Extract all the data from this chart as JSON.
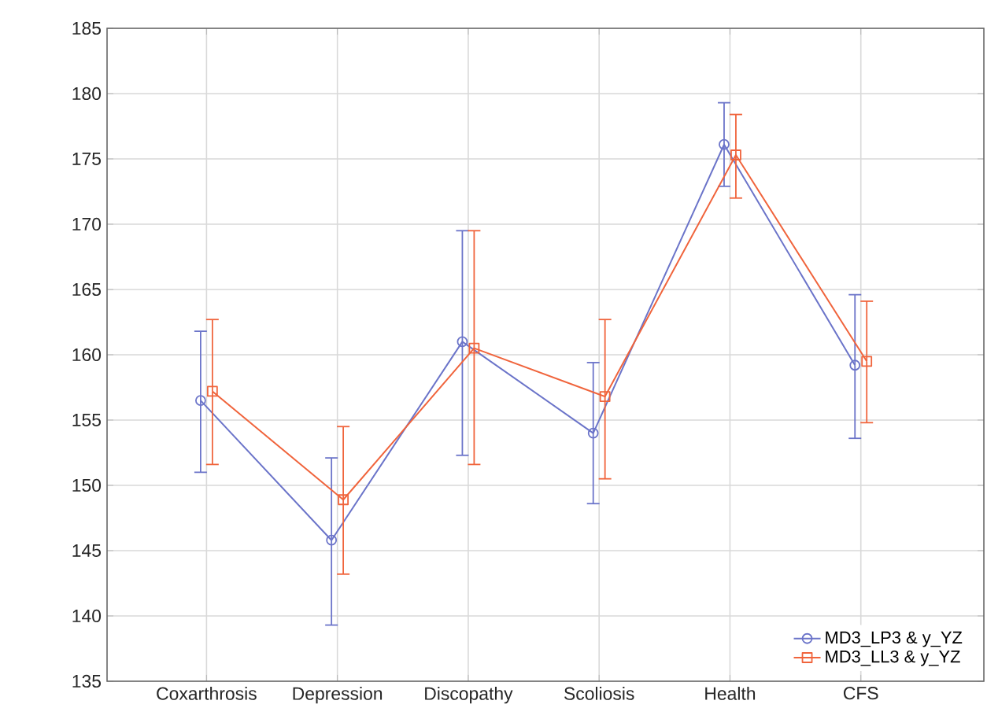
{
  "chart_data": {
    "type": "line",
    "categories": [
      "Coxarthrosis",
      "Depression",
      "Discopathy",
      "Scoliosis",
      "Health",
      "CFS"
    ],
    "series": [
      {
        "name": "MD3_LP3 & y_YZ",
        "color": "#6b74c9",
        "marker": "circle",
        "values": [
          156.5,
          145.8,
          161.0,
          154.0,
          176.1,
          159.2
        ],
        "errors": [
          [
            151.0,
            161.8
          ],
          [
            139.3,
            152.1
          ],
          [
            152.3,
            169.5
          ],
          [
            148.6,
            159.4
          ],
          [
            172.9,
            179.3
          ],
          [
            153.6,
            164.6
          ]
        ]
      },
      {
        "name": "MD3_LL3 & y_YZ",
        "color": "#f0643c",
        "marker": "square",
        "values": [
          157.2,
          148.9,
          160.5,
          156.8,
          175.3,
          159.5
        ],
        "errors": [
          [
            151.6,
            162.7
          ],
          [
            143.2,
            154.5
          ],
          [
            151.6,
            169.5
          ],
          [
            150.5,
            162.7
          ],
          [
            172.0,
            178.4
          ],
          [
            154.8,
            164.1
          ]
        ]
      }
    ],
    "ylim": [
      135,
      185
    ],
    "yticks": [
      135,
      140,
      145,
      150,
      155,
      160,
      165,
      170,
      175,
      180,
      185
    ],
    "grid": true,
    "legend": "bottom right",
    "line_style": "solid"
  }
}
